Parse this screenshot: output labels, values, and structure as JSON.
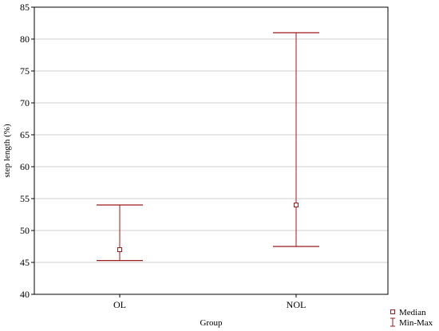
{
  "chart_data": {
    "type": "error-bar",
    "xlabel": "Group",
    "ylabel": "step length (%)",
    "ylim": [
      40,
      85
    ],
    "yticks": [
      40,
      45,
      50,
      55,
      60,
      65,
      70,
      75,
      80,
      85
    ],
    "grid": true,
    "categories": [
      "OL",
      "NOL"
    ],
    "series": [
      {
        "name": "Median",
        "marker": "square",
        "values": [
          47,
          54
        ]
      },
      {
        "name": "Min-Max",
        "marker": "whisker",
        "low": [
          45.3,
          47.5
        ],
        "high": [
          54,
          81
        ]
      }
    ],
    "legend": {
      "placement": "bottom-right",
      "items": [
        {
          "label": "Median",
          "icon": "square-marker-icon"
        },
        {
          "label": "Min-Max",
          "icon": "whisker-icon"
        }
      ]
    },
    "colors": {
      "series": "#9b1b1b",
      "grid": "#cfcfcf",
      "axis": "#000000"
    }
  }
}
